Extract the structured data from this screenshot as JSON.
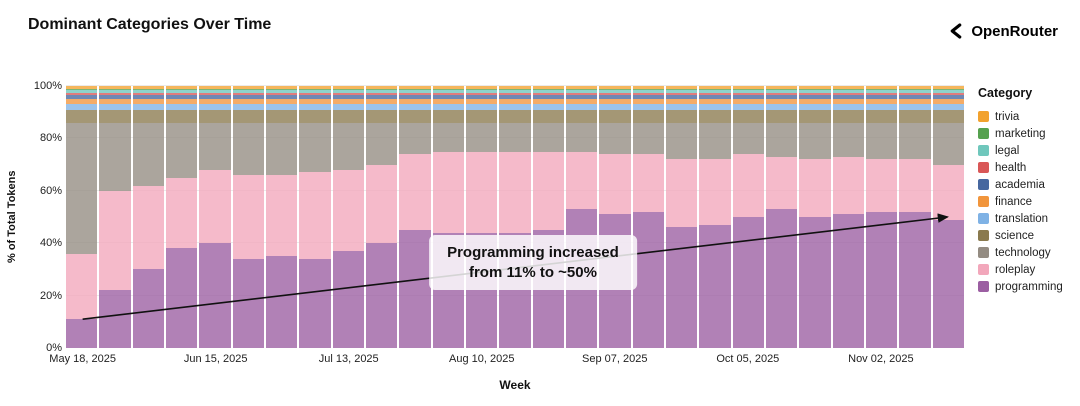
{
  "header": {
    "title": "Dominant Categories Over Time",
    "brand": "OpenRouter"
  },
  "chart_data": {
    "type": "bar",
    "stacked": true,
    "normalized_percent": true,
    "title": "Dominant Categories Over Time",
    "xlabel": "Week",
    "ylabel": "% of Total Tokens",
    "ylim": [
      0,
      100
    ],
    "y_ticks": [
      0,
      20,
      40,
      60,
      80,
      100
    ],
    "grid": true,
    "categories": [
      "2025-05-18",
      "2025-05-25",
      "2025-06-01",
      "2025-06-08",
      "2025-06-15",
      "2025-06-22",
      "2025-06-29",
      "2025-07-06",
      "2025-07-13",
      "2025-07-20",
      "2025-07-27",
      "2025-08-03",
      "2025-08-10",
      "2025-08-17",
      "2025-08-24",
      "2025-08-31",
      "2025-09-07",
      "2025-09-14",
      "2025-09-21",
      "2025-09-28",
      "2025-10-05",
      "2025-10-12",
      "2025-10-19",
      "2025-10-26",
      "2025-11-02",
      "2025-11-09",
      "2025-11-16"
    ],
    "x_ticks": [
      {
        "label": "May 18, 2025",
        "index": 0
      },
      {
        "label": "Jun 15, 2025",
        "index": 4
      },
      {
        "label": "Jul 13, 2025",
        "index": 8
      },
      {
        "label": "Aug 10, 2025",
        "index": 12
      },
      {
        "label": "Sep 07, 2025",
        "index": 16
      },
      {
        "label": "Oct 05, 2025",
        "index": 20
      },
      {
        "label": "Nov 02, 2025",
        "index": 24
      }
    ],
    "series": [
      {
        "name": "programming",
        "color": "#9b5ea2",
        "values": [
          11,
          22,
          30,
          38,
          40,
          34,
          35,
          34,
          37,
          40,
          45,
          44,
          44,
          44,
          45,
          53,
          51,
          52,
          46,
          47,
          50,
          53,
          50,
          51,
          52,
          52,
          49
        ]
      },
      {
        "name": "roleplay",
        "color": "#f2a7bb",
        "values": [
          25,
          38,
          32,
          27,
          28,
          32,
          31,
          33,
          31,
          30,
          29,
          31,
          31,
          31,
          30,
          22,
          23,
          22,
          26,
          25,
          24,
          20,
          22,
          22,
          20,
          20,
          21
        ]
      },
      {
        "name": "technology",
        "color": "#948c82",
        "values": [
          50,
          26,
          24,
          21,
          18,
          20,
          20,
          19,
          18,
          16,
          12,
          11,
          11,
          11,
          11,
          11,
          12,
          12,
          14,
          14,
          12,
          13,
          14,
          13,
          14,
          14,
          16
        ]
      },
      {
        "name": "science",
        "color": "#8a7a4e",
        "values": [
          5,
          5,
          5,
          5,
          5,
          5,
          5,
          5,
          5,
          5,
          5,
          5,
          5,
          5,
          5,
          5,
          5,
          5,
          5,
          5,
          5,
          5,
          5,
          5,
          5,
          5,
          5
        ]
      },
      {
        "name": "translation",
        "color": "#7fb2e5",
        "values": [
          2,
          2,
          2,
          2,
          2,
          2,
          2,
          2,
          2,
          2,
          2,
          2,
          2,
          2,
          2,
          2,
          2,
          2,
          2,
          2,
          2,
          2,
          2,
          2,
          2,
          2,
          2
        ]
      },
      {
        "name": "finance",
        "color": "#f1953c",
        "values": [
          2,
          2,
          2,
          2,
          2,
          2,
          2,
          2,
          2,
          2,
          2,
          2,
          2,
          2,
          2,
          2,
          2,
          2,
          2,
          2,
          2,
          2,
          2,
          2,
          2,
          2,
          2
        ]
      },
      {
        "name": "academia",
        "color": "#46679f",
        "values": [
          1.5,
          1.5,
          1.5,
          1.5,
          1.5,
          1.5,
          1.5,
          1.5,
          1.5,
          1.5,
          1.5,
          1.5,
          1.5,
          1.5,
          1.5,
          1.5,
          1.5,
          1.5,
          1.5,
          1.5,
          1.5,
          1.5,
          1.5,
          1.5,
          1.5,
          1.5,
          1.5
        ]
      },
      {
        "name": "health",
        "color": "#d95757",
        "values": [
          1,
          1,
          1,
          1,
          1,
          1,
          1,
          1,
          1,
          1,
          1,
          1,
          1,
          1,
          1,
          1,
          1,
          1,
          1,
          1,
          1,
          1,
          1,
          1,
          1,
          1,
          1
        ]
      },
      {
        "name": "legal",
        "color": "#6fc7bc",
        "values": [
          1,
          1,
          1,
          1,
          1,
          1,
          1,
          1,
          1,
          1,
          1,
          1,
          1,
          1,
          1,
          1,
          1,
          1,
          1,
          1,
          1,
          1,
          1,
          1,
          1,
          1,
          1
        ]
      },
      {
        "name": "marketing",
        "color": "#55a14e",
        "values": [
          0.5,
          0.5,
          0.5,
          0.5,
          0.5,
          0.5,
          0.5,
          0.5,
          0.5,
          0.5,
          0.5,
          0.5,
          0.5,
          0.5,
          0.5,
          0.5,
          0.5,
          0.5,
          0.5,
          0.5,
          0.5,
          0.5,
          0.5,
          0.5,
          0.5,
          0.5,
          0.5
        ]
      },
      {
        "name": "trivia",
        "color": "#f2a22e",
        "values": [
          1,
          1,
          1,
          1,
          1,
          1,
          1,
          1,
          1,
          1,
          1,
          1,
          1,
          1,
          1,
          1,
          1,
          1,
          1,
          1,
          1,
          1,
          1,
          1,
          1,
          1,
          1
        ]
      }
    ],
    "legend": {
      "title": "Category",
      "position": "right",
      "items_top_to_bottom": [
        "trivia",
        "marketing",
        "legal",
        "health",
        "academia",
        "finance",
        "translation",
        "science",
        "technology",
        "roleplay",
        "programming"
      ]
    },
    "annotation": {
      "line1": "Programming increased",
      "line2": "from 11% to ~50%",
      "arrow": {
        "from_value": 11,
        "to_value": 50
      }
    }
  }
}
